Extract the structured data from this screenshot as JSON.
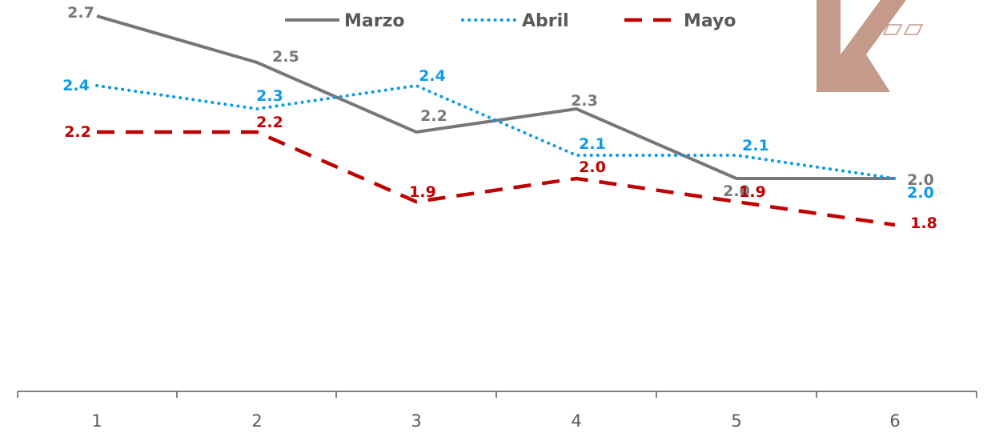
{
  "chart_data": {
    "type": "line",
    "categories": [
      "1",
      "2",
      "3",
      "4",
      "5",
      "6"
    ],
    "series": [
      {
        "name": "Marzo",
        "values": [
          2.7,
          2.5,
          2.2,
          2.3,
          2.0,
          2.0
        ],
        "color": "#7a7677",
        "style": "solid"
      },
      {
        "name": "Abril",
        "values": [
          2.4,
          2.3,
          2.4,
          2.1,
          2.1,
          2.0
        ],
        "color": "#0f9ae8",
        "style": "dotted"
      },
      {
        "name": "Mayo",
        "values": [
          2.2,
          2.2,
          1.9,
          2.0,
          1.9,
          1.8
        ],
        "color": "#c00000",
        "style": "dashed"
      }
    ],
    "legend_position": "top-center",
    "grid": false,
    "logo": {
      "color": "#c49a8a",
      "icon": "k-logo-icon"
    }
  }
}
